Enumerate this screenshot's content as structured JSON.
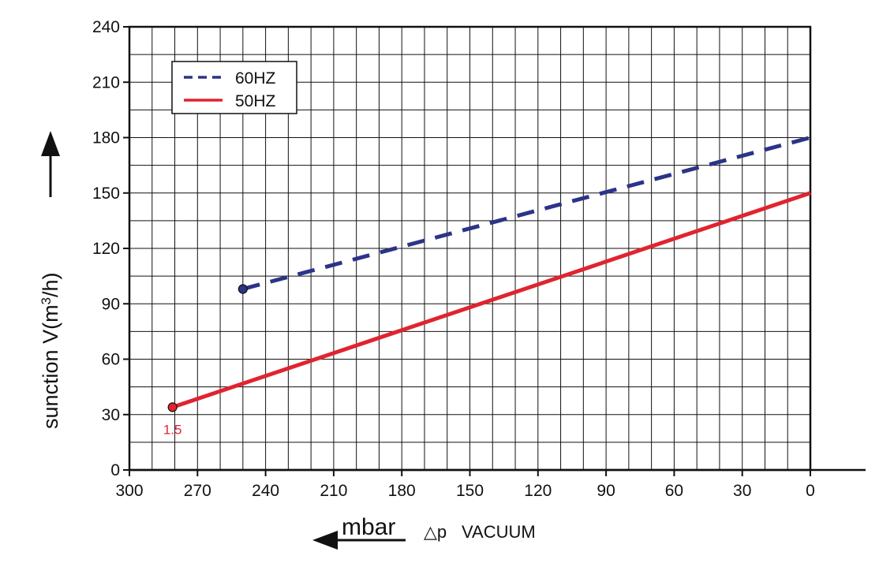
{
  "chart_data": {
    "type": "line",
    "xlabel_unit": "mbar",
    "xlabel_symbol": "△p",
    "xlabel_text": "VACUUM",
    "ylabel_prefix": "suncti​on V(m",
    "ylabel_sup": "3",
    "ylabel_suffix": "/h)",
    "x_ticks": [
      300,
      270,
      240,
      210,
      180,
      150,
      120,
      90,
      60,
      30,
      0
    ],
    "y_ticks": [
      0,
      30,
      60,
      90,
      120,
      150,
      180,
      210,
      240
    ],
    "xlim": [
      300,
      0
    ],
    "ylim": [
      0,
      240
    ],
    "x_reversed": true,
    "grid": true,
    "legend_position": "top-left",
    "series": [
      {
        "name": "60HZ",
        "color": "#2b3487",
        "style": "dashed",
        "x": [
          250,
          0
        ],
        "y": [
          98,
          180
        ]
      },
      {
        "name": "50HZ",
        "color": "#e0242f",
        "style": "solid",
        "x": [
          281,
          0
        ],
        "y": [
          34,
          150
        ]
      }
    ],
    "annotations": [
      {
        "text": "1.5",
        "x": 281,
        "y": 34,
        "color": "#e0242f"
      }
    ]
  }
}
